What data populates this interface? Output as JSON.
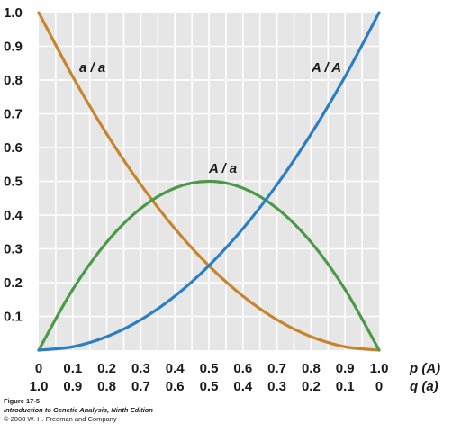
{
  "chart_data": {
    "type": "line",
    "x": [
      0,
      0.1,
      0.2,
      0.3,
      0.4,
      0.5,
      0.6,
      0.7,
      0.8,
      0.9,
      1.0
    ],
    "x_tick_labels": [
      "0",
      "0.1",
      "0.2",
      "0.3",
      "0.4",
      "0.5",
      "0.6",
      "0.7",
      "0.8",
      "0.9",
      "1.0"
    ],
    "x2_tick_labels": [
      "1.0",
      "0.9",
      "0.8",
      "0.7",
      "0.6",
      "0.5",
      "0.4",
      "0.3",
      "0.2",
      "0.1",
      "0"
    ],
    "xlabel": "p (A)",
    "x2label": "q (a)",
    "y_tick_labels": [
      "0.1",
      "0.2",
      "0.3",
      "0.4",
      "0.5",
      "0.6",
      "0.7",
      "0.8",
      "0.9",
      "1.0"
    ],
    "ylim": [
      0,
      1
    ],
    "xlim": [
      0,
      1
    ],
    "grid": true,
    "series": [
      {
        "name": "a / a",
        "color": "#c8842a",
        "values": [
          1.0,
          0.81,
          0.64,
          0.49,
          0.36,
          0.25,
          0.16,
          0.09,
          0.04,
          0.01,
          0.0
        ]
      },
      {
        "name": "A / a",
        "color": "#4a9a48",
        "values": [
          0.0,
          0.18,
          0.32,
          0.42,
          0.48,
          0.5,
          0.48,
          0.42,
          0.32,
          0.18,
          0.0
        ]
      },
      {
        "name": "A / A",
        "color": "#2a7fc4",
        "values": [
          0.0,
          0.01,
          0.04,
          0.09,
          0.16,
          0.25,
          0.36,
          0.49,
          0.64,
          0.81,
          1.0
        ]
      }
    ]
  },
  "caption": {
    "figure": "Figure 17-5",
    "book": "Introduction to Genetic Analysis, Ninth Edition",
    "copyright": "© 2008 W. H. Freeman and Company"
  }
}
